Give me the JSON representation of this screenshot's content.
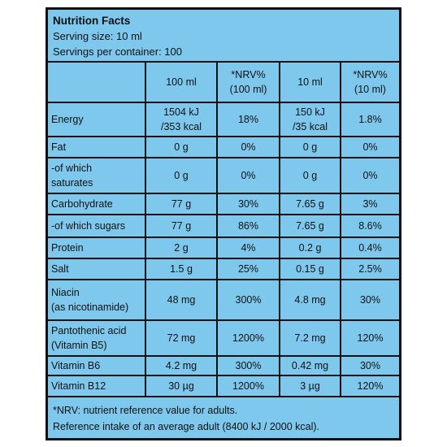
{
  "header": {
    "title": "Nutrition Facts",
    "serving_size": "Serving size: 10 ml",
    "servings": "Servings per container: 100"
  },
  "table": {
    "columns": [
      "",
      "100 ml",
      "*NRV%\n(100 ml)",
      "10 ml",
      "*NRV%\n(10 ml)"
    ],
    "rows": [
      [
        "Energy",
        "1504 kJ\n/353 kcal",
        "18%",
        "150 kJ\n/35 kcal",
        "1.8%"
      ],
      [
        "Fat",
        "0 g",
        "0%",
        "0 g",
        "0%"
      ],
      [
        "-of which\nsaturates",
        "0 g",
        "0%",
        "0 g",
        "0%"
      ],
      [
        "Carbohydrate",
        "77 g",
        "30%",
        "7.65 g",
        "3%"
      ],
      [
        "-of which sugars",
        "77 g",
        "86%",
        "7.65 g",
        "8.6%"
      ],
      [
        "Protein",
        "2 g",
        "4%",
        "0.2 g",
        "0.4%"
      ],
      [
        "Salt",
        "1.5 g",
        "25%",
        "0.15 g",
        "2.5%"
      ],
      [
        "Niacin\n(as nicotinamide)",
        "48 mg",
        "300%",
        "4.8 mg",
        "30%"
      ],
      [
        "Pantothenic acid\n(Vitamin B5)",
        "72 mg",
        "1200%",
        "7.2 mg",
        "120%"
      ],
      [
        "Vitamin B6",
        "4.2 mg",
        "300%",
        "0.42 mg",
        "30%"
      ],
      [
        "Vitamin B12",
        "30 µg",
        "1200%",
        "3 µg",
        "120%"
      ]
    ]
  },
  "footer": {
    "lines": [
      "*NRV: nutrient reference value for adults.",
      "Reference intake of an average adult (8400 kJ / 2000 kcal)."
    ]
  }
}
